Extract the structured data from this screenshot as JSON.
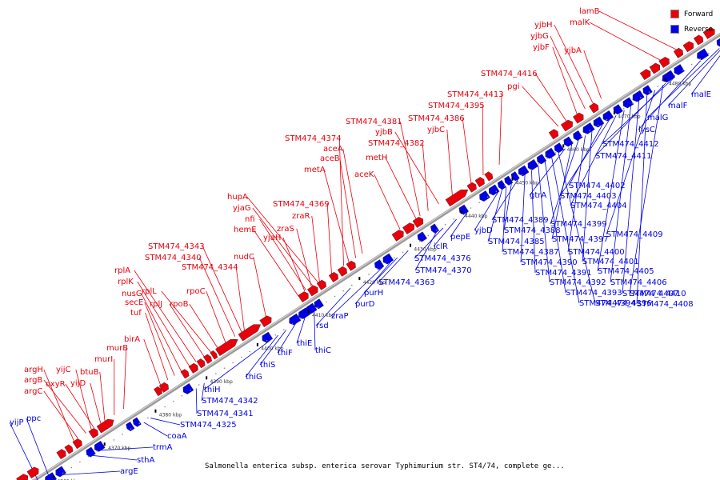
{
  "caption": "Salmonella enterica subsp. enterica serovar Typhimurium str. ST4/74, complete ge...",
  "legend": [
    {
      "label": "Forward",
      "color": "#e8000b"
    },
    {
      "label": "Reverse",
      "color": "#0000e6"
    }
  ],
  "colors": {
    "forward": "#e8000b",
    "reverse": "#0000e6",
    "backbone": "#a9a9a9"
  },
  "ticks": [
    "4360 kbp",
    "4370 kbp",
    "4380 kbp",
    "4390 kbp",
    "4400 kbp",
    "4410 kbp",
    "4420 kbp",
    "4430 kbp",
    "4440 kbp",
    "4450 kbp",
    "4460 kbp",
    "4470 kbp",
    "4480 kbp"
  ],
  "forward_labels": [
    "argC",
    "argB",
    "argH",
    "oxyR",
    "yijD",
    "yijC",
    "btuB",
    "murI",
    "murB",
    "birA",
    "tuf",
    "secE",
    "nusG",
    "rplK",
    "rplA",
    "rplJ",
    "rplL",
    "rpoB",
    "rpoC",
    "STM474_4344",
    "STM474_4340",
    "STM474_4343",
    "nudC",
    "yjaH",
    "zraS",
    "zraR",
    "hemE",
    "nfi",
    "yjaG",
    "hupA",
    "STM474_4369",
    "metA",
    "aceB",
    "aceA",
    "STM474_4374",
    "aceK",
    "metH",
    "STM474_4382",
    "yjbB",
    "STM474_4381",
    "yjbC",
    "STM474_4386",
    "STM474_4395",
    "STM474_4413",
    "pgi",
    "STM474_4416",
    "yjbF",
    "yjbG",
    "yjbH",
    "yjbA",
    "malK",
    "lamB"
  ],
  "reverse_labels": [
    "yijP",
    "ppc",
    "argE",
    "sthA",
    "trmA",
    "coaA",
    "STM474_4325",
    "STM474_4341",
    "STM474_4342",
    "thiH",
    "thiG",
    "thiS",
    "thiF",
    "thiE",
    "thiC",
    "rsd",
    "zraP",
    "purD",
    "purH",
    "STM474_4363",
    "STM474_4370",
    "STM474_4376",
    "iclR",
    "pepE",
    "yjbD",
    "STM474_4385",
    "STM474_4387",
    "STM474_4388",
    "STM474_4389",
    "STM474_4390",
    "STM474_4391",
    "STM474_4392",
    "STM474_4393",
    "STM474_4394",
    "STM474_4396",
    "gtrA",
    "STM474_4397",
    "STM474_4399",
    "STM474_4400",
    "STM474_4401",
    "STM474_4402",
    "STM474_4403",
    "STM474_4404",
    "STM474_4405",
    "STM474_4406",
    "STM474_4407",
    "STM474_4408",
    "STM474_4409",
    "STM474_4410",
    "STM474_4411",
    "STM474_4412",
    "lysC",
    "malG",
    "malF",
    "malE"
  ]
}
